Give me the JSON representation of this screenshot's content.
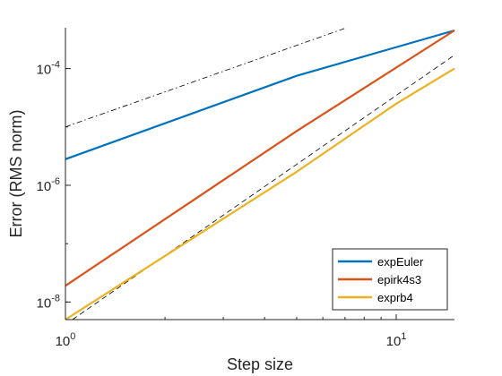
{
  "chart_data": {
    "type": "line",
    "xscale": "log",
    "yscale": "log",
    "xlim": [
      1,
      15
    ],
    "ylim": [
      5e-09,
      0.0005
    ],
    "xlabel": "Step size",
    "ylabel": "Error (RMS norm)",
    "x_ticks": [
      {
        "value": 1,
        "base": "10",
        "exp": "0"
      },
      {
        "value": 10,
        "base": "10",
        "exp": "1"
      }
    ],
    "y_ticks": [
      {
        "value": 1e-08,
        "base": "10",
        "exp": "-8"
      },
      {
        "value": 1e-06,
        "base": "10",
        "exp": "-6"
      },
      {
        "value": 0.0001,
        "base": "10",
        "exp": "-4"
      }
    ],
    "grid": false,
    "legend_position": "bottom-right",
    "series": [
      {
        "name": "expEuler",
        "color": "#0072BD",
        "x": [
          1,
          5,
          15
        ],
        "y": [
          2.8e-06,
          7.5e-05,
          0.00045
        ]
      },
      {
        "name": "epirk4s3",
        "color": "#D95319",
        "x": [
          1,
          5,
          15
        ],
        "y": [
          1.9e-08,
          8.5e-06,
          0.00045
        ]
      },
      {
        "name": "exprb4",
        "color": "#EDB120",
        "x": [
          1,
          5,
          10,
          15
        ],
        "y": [
          5e-09,
          1.7e-06,
          2.5e-05,
          0.0001
        ]
      }
    ],
    "reference_lines": [
      {
        "style": "dash-dot",
        "color": "#000000",
        "x": [
          1,
          7
        ],
        "y": [
          1e-05,
          0.00049
        ]
      },
      {
        "style": "dashed",
        "color": "#000000",
        "x": [
          1.05,
          15
        ],
        "y": [
          5e-09,
          0.00017
        ]
      }
    ]
  }
}
